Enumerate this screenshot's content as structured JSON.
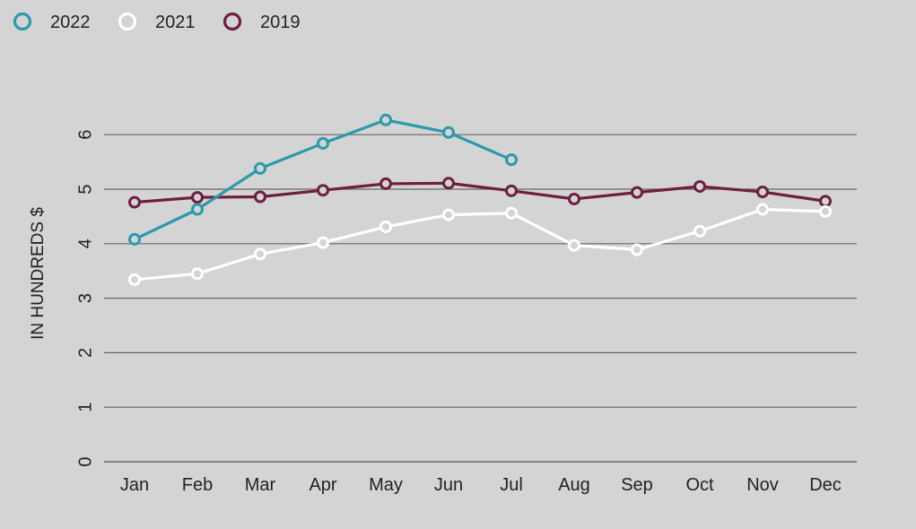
{
  "chart_data": {
    "type": "line",
    "title": "",
    "xlabel": "",
    "ylabel": "IN HUNDREDS $",
    "categories": [
      "Jan",
      "Feb",
      "Mar",
      "Apr",
      "May",
      "Jun",
      "Jul",
      "Aug",
      "Sep",
      "Oct",
      "Nov",
      "Dec"
    ],
    "yticks": [
      0,
      1,
      2,
      3,
      4,
      5,
      6
    ],
    "ylim": [
      0,
      6.6
    ],
    "grid": true,
    "legend_position": "top-left",
    "series": [
      {
        "name": "2022",
        "color": "#2a9aac",
        "values": [
          4.08,
          4.63,
          5.38,
          5.84,
          6.27,
          6.04,
          5.54,
          null,
          null,
          null,
          null,
          null
        ]
      },
      {
        "name": "2021",
        "color": "#ffffff",
        "values": [
          3.34,
          3.45,
          3.81,
          4.02,
          4.31,
          4.53,
          4.56,
          3.97,
          3.89,
          4.23,
          4.63,
          4.59
        ]
      },
      {
        "name": "2019",
        "color": "#6e1e40",
        "values": [
          4.76,
          4.85,
          4.86,
          4.98,
          5.1,
          5.11,
          4.97,
          4.82,
          4.94,
          5.05,
          4.95,
          4.78
        ]
      }
    ],
    "legend_order": [
      "2022",
      "2021",
      "2019"
    ],
    "grid_color": "#666666"
  }
}
